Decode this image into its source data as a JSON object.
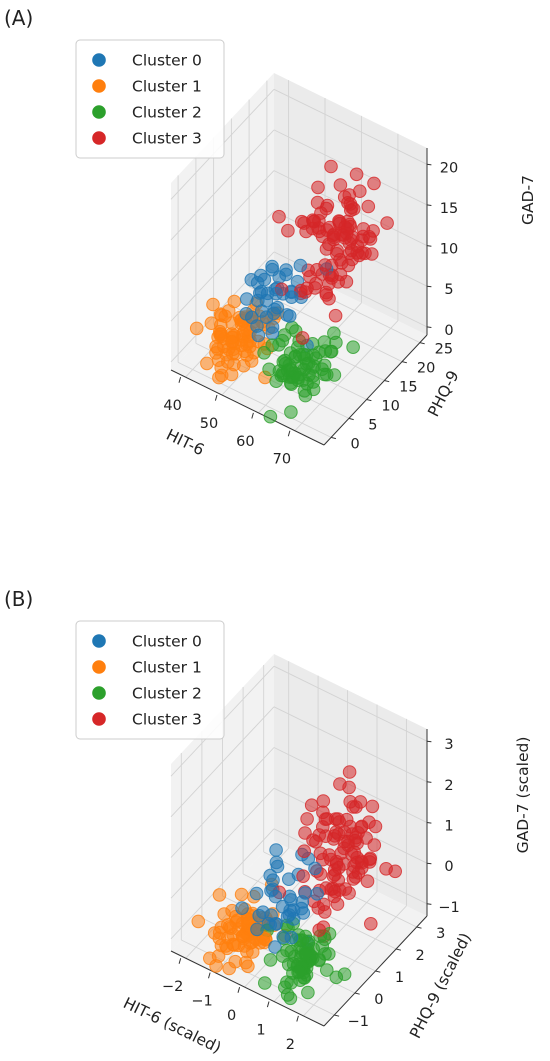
{
  "figure": {
    "panels": [
      {
        "label": "(A)"
      },
      {
        "label": "(B)"
      }
    ]
  },
  "chart_data": [
    {
      "type": "scatter",
      "projection": "3d",
      "panel": "(A)",
      "xlabel": "HIT-6",
      "ylabel": "PHQ-9",
      "zlabel": "GAD-7",
      "xticks": [
        "40",
        "50",
        "60",
        "70"
      ],
      "yticks": [
        "0",
        "5",
        "10",
        "15",
        "20",
        "25"
      ],
      "zticks": [
        "0",
        "5",
        "10",
        "15",
        "20"
      ],
      "xlim": [
        36,
        78
      ],
      "ylim": [
        -2,
        27
      ],
      "zlim": [
        -1,
        22
      ],
      "grid": true,
      "legend_position": "top-left",
      "series": [
        {
          "name": "Cluster 0",
          "color": "#1f77b4",
          "centroid": [
            57,
            6,
            9
          ],
          "spread": [
            3.5,
            3,
            2.5
          ],
          "count": 40,
          "points": [
            [
              55,
              4,
              10
            ],
            [
              58,
              7,
              9
            ],
            [
              61,
              5,
              8
            ],
            [
              54,
              8,
              11
            ],
            [
              59,
              3,
              7
            ],
            [
              56,
              6,
              12
            ],
            [
              62,
              8,
              9
            ],
            [
              53,
              5,
              8
            ],
            [
              60,
              9,
              10
            ],
            [
              57,
              2,
              9
            ]
          ]
        },
        {
          "name": "Cluster 1",
          "color": "#ff7f0e",
          "centroid": [
            47,
            5,
            2
          ],
          "spread": [
            3.5,
            3.5,
            1.6
          ],
          "count": 80,
          "points": [
            [
              44,
              3,
              1
            ],
            [
              48,
              6,
              2
            ],
            [
              51,
              4,
              3
            ],
            [
              46,
              8,
              1
            ],
            [
              49,
              2,
              2
            ],
            [
              43,
              5,
              4
            ],
            [
              50,
              7,
              0
            ],
            [
              45,
              6,
              3
            ],
            [
              52,
              3,
              2
            ],
            [
              47,
              9,
              1
            ]
          ]
        },
        {
          "name": "Cluster 2",
          "color": "#2ca02c",
          "centroid": [
            64,
            6,
            2
          ],
          "spread": [
            3.5,
            3.5,
            1.6
          ],
          "count": 70,
          "points": [
            [
              61,
              4,
              1
            ],
            [
              65,
              7,
              2
            ],
            [
              68,
              5,
              3
            ],
            [
              62,
              9,
              1
            ],
            [
              66,
              3,
              2
            ],
            [
              63,
              6,
              4
            ],
            [
              69,
              8,
              1
            ],
            [
              60,
              5,
              2
            ],
            [
              67,
              2,
              3
            ],
            [
              64,
              10,
              1
            ]
          ]
        },
        {
          "name": "Cluster 3",
          "color": "#d62728",
          "centroid": [
            65,
            15,
            13
          ],
          "spread": [
            4,
            4.5,
            3.5
          ],
          "count": 100,
          "points": [
            [
              60,
              12,
              10
            ],
            [
              66,
              17,
              15
            ],
            [
              70,
              14,
              19
            ],
            [
              63,
              20,
              12
            ],
            [
              68,
              11,
              16
            ],
            [
              62,
              16,
              8
            ],
            [
              71,
              19,
              14
            ],
            [
              64,
              13,
              18
            ],
            [
              67,
              22,
              11
            ],
            [
              61,
              15,
              13
            ]
          ]
        }
      ]
    },
    {
      "type": "scatter",
      "projection": "3d",
      "panel": "(B)",
      "xlabel": "HIT-6 (scaled)",
      "ylabel": "PHQ-9 (scaled)",
      "zlabel": "GAD-7 (scaled)",
      "xticks": [
        "−2",
        "−1",
        "0",
        "1",
        "2"
      ],
      "yticks": [
        "−1",
        "0",
        "1",
        "2",
        "3"
      ],
      "zticks": [
        "−1",
        "0",
        "1",
        "2",
        "3"
      ],
      "xlim": [
        -2.5,
        2.7
      ],
      "ylim": [
        -1.5,
        3.5
      ],
      "zlim": [
        -1.3,
        3.3
      ],
      "grid": true,
      "legend_position": "top-left",
      "series": [
        {
          "name": "Cluster 0",
          "color": "#1f77b4",
          "centroid": [
            0.4,
            -0.3,
            0.4
          ],
          "spread": [
            0.45,
            0.45,
            0.5
          ],
          "count": 40,
          "points": [
            [
              0.2,
              -0.5,
              0.6
            ],
            [
              0.6,
              -0.1,
              0.3
            ],
            [
              0.9,
              -0.4,
              0.1
            ],
            [
              0.0,
              0.1,
              0.8
            ],
            [
              0.5,
              -0.7,
              0.0
            ]
          ]
        },
        {
          "name": "Cluster 1",
          "color": "#ff7f0e",
          "centroid": [
            -0.9,
            -0.4,
            -0.9
          ],
          "spread": [
            0.45,
            0.5,
            0.35
          ],
          "count": 80,
          "points": [
            [
              -1.2,
              -0.6,
              -1.0
            ],
            [
              -0.8,
              -0.2,
              -0.8
            ],
            [
              -0.5,
              -0.5,
              -0.6
            ],
            [
              -1.0,
              0.1,
              -1.1
            ],
            [
              -0.7,
              -0.8,
              -0.9
            ]
          ]
        },
        {
          "name": "Cluster 2",
          "color": "#2ca02c",
          "centroid": [
            1.1,
            -0.3,
            -0.9
          ],
          "spread": [
            0.45,
            0.5,
            0.35
          ],
          "count": 70,
          "points": [
            [
              0.8,
              -0.5,
              -1.0
            ],
            [
              1.2,
              -0.1,
              -0.8
            ],
            [
              1.5,
              -0.4,
              -0.6
            ],
            [
              0.9,
              0.2,
              -1.1
            ],
            [
              1.3,
              -0.7,
              -0.9
            ]
          ]
        },
        {
          "name": "Cluster 3",
          "color": "#d62728",
          "centroid": [
            1.2,
            1.3,
            1.0
          ],
          "spread": [
            0.5,
            0.65,
            0.8
          ],
          "count": 100,
          "points": [
            [
              0.9,
              0.9,
              0.5
            ],
            [
              1.3,
              1.6,
              1.6
            ],
            [
              1.7,
              1.2,
              2.4
            ],
            [
              1.0,
              2.2,
              1.0
            ],
            [
              1.5,
              0.8,
              1.8
            ]
          ]
        }
      ]
    }
  ]
}
